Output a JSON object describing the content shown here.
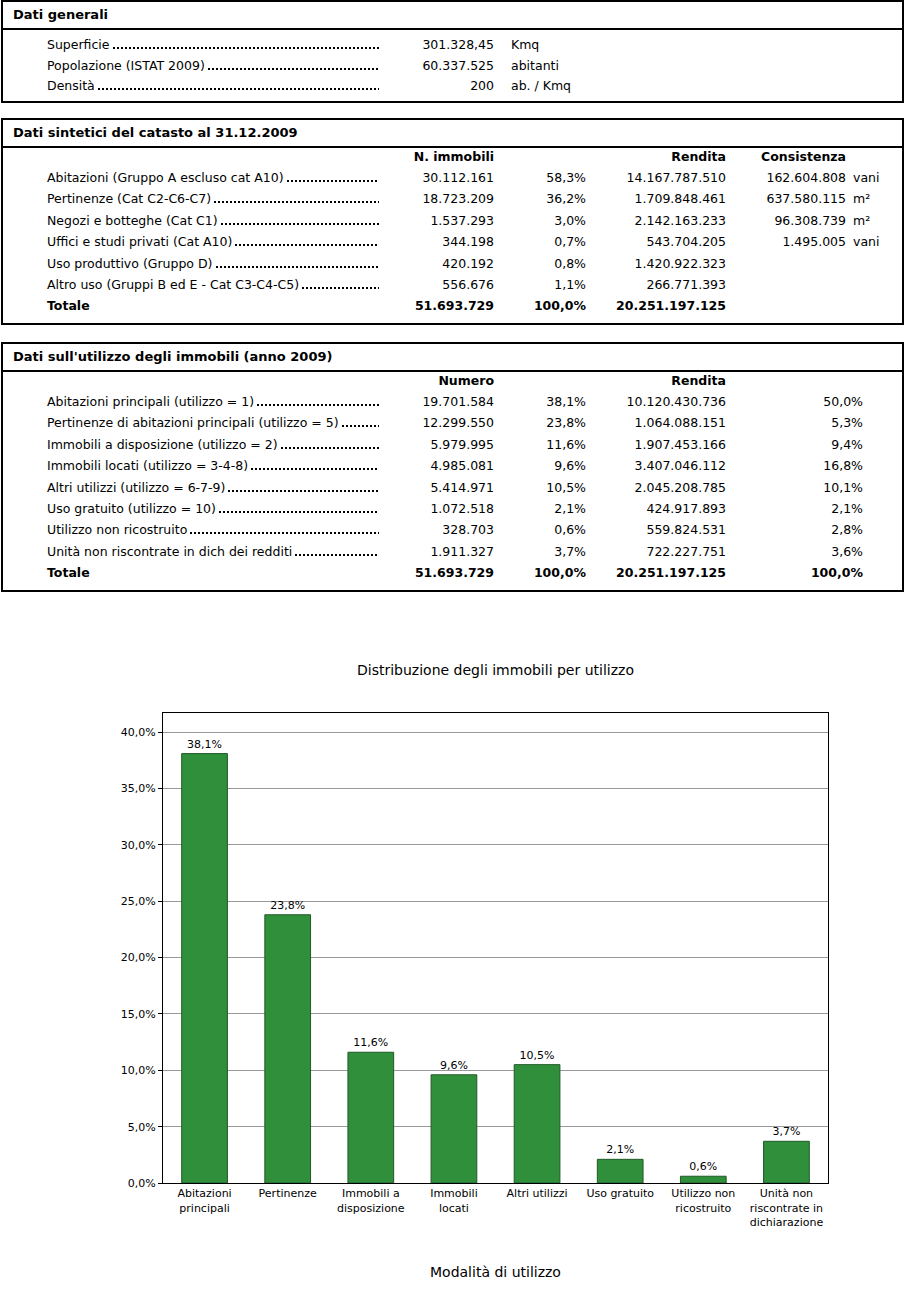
{
  "general": {
    "title": "Dati generali",
    "rows": [
      [
        "Superficie",
        "301.328,45",
        "Kmq"
      ],
      [
        "Popolazione (ISTAT 2009)",
        "60.337.525",
        "abitanti"
      ],
      [
        "Densità",
        "200",
        "ab. / Kmq"
      ]
    ]
  },
  "catasto": {
    "title": "Dati sintetici del catasto al 31.12.2009",
    "header": [
      null,
      "N. immobili",
      null,
      "Rendita",
      "Consistenza"
    ],
    "rows": [
      [
        "Abitazioni (Gruppo A escluso cat A10)",
        "30.112.161",
        "58,3%",
        "14.167.787.510",
        "162.604.808",
        "vani"
      ],
      [
        "Pertinenze (Cat C2-C6-C7)",
        "18.723.209",
        "36,2%",
        "1.709.848.461",
        "637.580.115",
        "m²"
      ],
      [
        "Negozi e botteghe (Cat C1)",
        "1.537.293",
        "3,0%",
        "2.142.163.233",
        "96.308.739",
        "m²"
      ],
      [
        "Uffici e studi privati (Cat A10)",
        "344.198",
        "0,7%",
        "543.704.205",
        "1.495.005",
        "vani"
      ],
      [
        "Uso produttivo (Gruppo D)",
        "420.192",
        "0,8%",
        "1.420.922.323"
      ],
      [
        "Altro uso (Gruppi B ed E - Cat C3-C4-C5)",
        "556.676",
        "1,1%",
        "266.771.393"
      ]
    ],
    "total": [
      "Totale",
      "51.693.729",
      "100,0%",
      "20.251.197.125"
    ]
  },
  "utilizzo": {
    "title": "Dati sull'utilizzo degli immobili (anno 2009)",
    "header": [
      null,
      "Numero",
      null,
      "Rendita"
    ],
    "rows": [
      [
        "Abitazioni principali (utilizzo = 1)",
        "19.701.584",
        "38,1%",
        "10.120.430.736",
        "50,0%"
      ],
      [
        "Pertinenze di abitazioni principali (utilizzo = 5)",
        "12.299.550",
        "23,8%",
        "1.064.088.151",
        "5,3%"
      ],
      [
        "Immobili a disposizione (utilizzo = 2)",
        "5.979.995",
        "11,6%",
        "1.907.453.166",
        "9,4%"
      ],
      [
        "Immobili locati (utilizzo = 3-4-8)",
        "4.985.081",
        "9,6%",
        "3.407.046.112",
        "16,8%"
      ],
      [
        "Altri utilizzi (utilizzo = 6-7-9)",
        "5.414.971",
        "10,5%",
        "2.045.208.785",
        "10,1%"
      ],
      [
        "Uso gratuito (utilizzo = 10)",
        "1.072.518",
        "2,1%",
        "424.917.893",
        "2,1%"
      ],
      [
        "Utilizzo non ricostruito",
        "328.703",
        "0,6%",
        "559.824.531",
        "2,8%"
      ],
      [
        "Unità non riscontrate in dich dei redditi",
        "1.911.327",
        "3,7%",
        "722.227.751",
        "3,6%"
      ]
    ],
    "total": [
      "Totale",
      "51.693.729",
      "100,0%",
      "20.251.197.125",
      "100,0%"
    ]
  },
  "chart_data": {
    "type": "bar",
    "title": "Distribuzione degli immobili per utilizzo",
    "xlabel": "Modalità di utilizzo",
    "categories": [
      "Abitazioni principali",
      "Pertinenze",
      "Immobili a disposizione",
      "Immobili locati",
      "Altri utilizzi",
      "Uso gratuito",
      "Utilizzo non ricostruito",
      "Unità non riscontrate in dichiarazione"
    ],
    "values": [
      38.1,
      23.8,
      11.6,
      9.6,
      10.5,
      2.1,
      0.6,
      3.7
    ],
    "value_labels": [
      "38,1%",
      "23,8%",
      "11,6%",
      "9,6%",
      "10,5%",
      "2,1%",
      "0,6%",
      "3,7%"
    ],
    "data_labels": true,
    "color": "#2f8f3a",
    "ylim": [
      0,
      41.7
    ],
    "yticks": [
      {
        "value": 0,
        "label": "0,0%"
      },
      {
        "value": 5,
        "label": "5,0%"
      },
      {
        "value": 10,
        "label": "10,0%"
      },
      {
        "value": 15,
        "label": "15,0%"
      },
      {
        "value": 20,
        "label": "20,0%"
      },
      {
        "value": 25,
        "label": "25,0%"
      },
      {
        "value": 30,
        "label": "30,0%"
      },
      {
        "value": 35,
        "label": "35,0%"
      },
      {
        "value": 40,
        "label": "40,0%"
      }
    ],
    "grid": true
  }
}
